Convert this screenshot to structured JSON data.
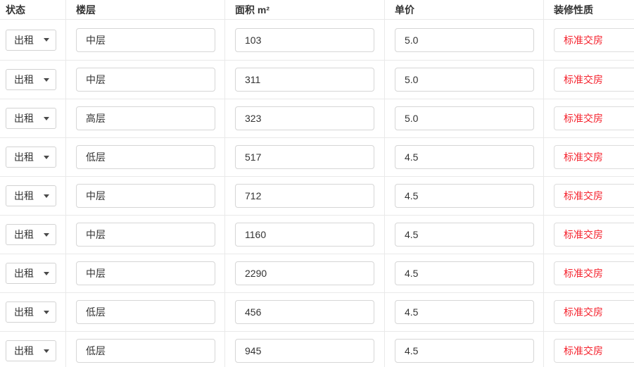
{
  "table": {
    "columns": [
      {
        "key": "status",
        "label": "状态"
      },
      {
        "key": "floor",
        "label": "楼层"
      },
      {
        "key": "area",
        "label": "面积 m²"
      },
      {
        "key": "price",
        "label": "单价"
      },
      {
        "key": "decoration",
        "label": "装修性质"
      }
    ],
    "rows": [
      {
        "status": "出租",
        "floor": "中层",
        "area": "103",
        "price": "5.0",
        "decoration": "标准交房"
      },
      {
        "status": "出租",
        "floor": "中层",
        "area": "311",
        "price": "5.0",
        "decoration": "标准交房"
      },
      {
        "status": "出租",
        "floor": "高层",
        "area": "323",
        "price": "5.0",
        "decoration": "标准交房"
      },
      {
        "status": "出租",
        "floor": "低层",
        "area": "517",
        "price": "4.5",
        "decoration": "标准交房"
      },
      {
        "status": "出租",
        "floor": "中层",
        "area": "712",
        "price": "4.5",
        "decoration": "标准交房"
      },
      {
        "status": "出租",
        "floor": "中层",
        "area": "1160",
        "price": "4.5",
        "decoration": "标准交房"
      },
      {
        "status": "出租",
        "floor": "中层",
        "area": "2290",
        "price": "4.5",
        "decoration": "标准交房"
      },
      {
        "status": "出租",
        "floor": "低层",
        "area": "456",
        "price": "4.5",
        "decoration": "标准交房"
      },
      {
        "status": "出租",
        "floor": "低层",
        "area": "945",
        "price": "4.5",
        "decoration": "标准交房"
      }
    ]
  },
  "icons": {
    "status_dropdown": "chevron-down-icon"
  },
  "colors": {
    "accent_red": "#f5222d",
    "divider": "#e9e9e9",
    "input_border": "#d6d6d6",
    "select_border": "#d2d2d2",
    "decoration_border": "#dddddd",
    "header_text": "#333333",
    "input_text": "#333333"
  }
}
